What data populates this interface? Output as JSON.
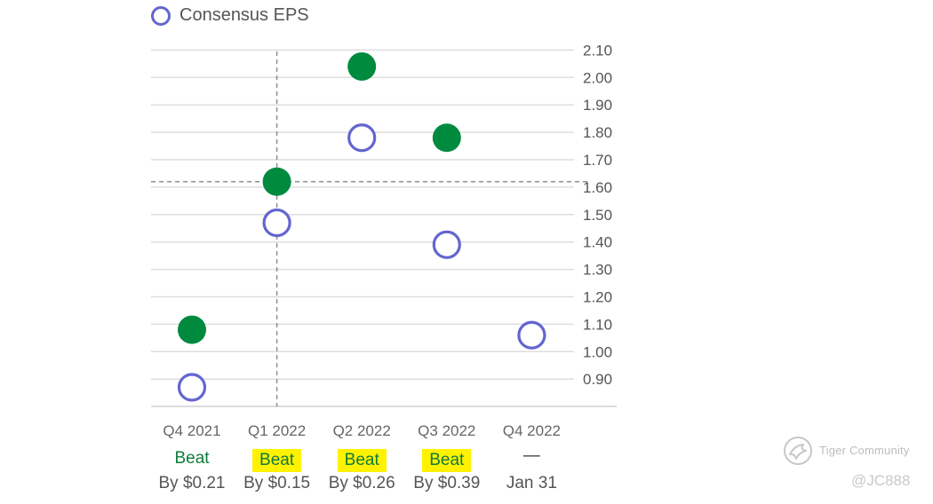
{
  "legend": {
    "label": "Consensus EPS",
    "color": "#6366cf"
  },
  "colors": {
    "actual": "#008a3e",
    "consensus": "#6366cf",
    "beat_text": "#0f7a3c",
    "highlight": "#fff200"
  },
  "chart_data": {
    "type": "scatter",
    "categories": [
      "Q4 2021",
      "Q1 2022",
      "Q2 2022",
      "Q3 2022",
      "Q4 2022"
    ],
    "series": [
      {
        "name": "Consensus EPS",
        "style": "hollow-circle",
        "values": [
          0.87,
          1.47,
          1.78,
          1.39,
          1.06
        ]
      },
      {
        "style": "filled-circle",
        "values": [
          1.08,
          1.62,
          2.04,
          1.78,
          null
        ]
      }
    ],
    "yticks": [
      "0.90",
      "1.00",
      "1.10",
      "1.20",
      "1.30",
      "1.40",
      "1.50",
      "1.60",
      "1.70",
      "1.80",
      "1.90",
      "2.00",
      "2.10"
    ],
    "ylim": [
      0.82,
      2.16
    ],
    "y_axis_side": "right",
    "grid": true,
    "crosshair": {
      "category": "Q1 2022",
      "value": 1.62
    },
    "legend_position": "top-left"
  },
  "results": [
    {
      "quarter": "Q4 2021",
      "status": "Beat",
      "highlighted": false,
      "detail": "By $0.21"
    },
    {
      "quarter": "Q1 2022",
      "status": "Beat",
      "highlighted": true,
      "detail": "By $0.15"
    },
    {
      "quarter": "Q2 2022",
      "status": "Beat",
      "highlighted": true,
      "detail": "By $0.26"
    },
    {
      "quarter": "Q3 2022",
      "status": "Beat",
      "highlighted": true,
      "detail": "By $0.39"
    },
    {
      "quarter": "Q4 2022",
      "status": "—",
      "highlighted": false,
      "detail": "Jan 31"
    }
  ],
  "watermark": {
    "brand": "Tiger Community",
    "handle": "@JC888"
  }
}
